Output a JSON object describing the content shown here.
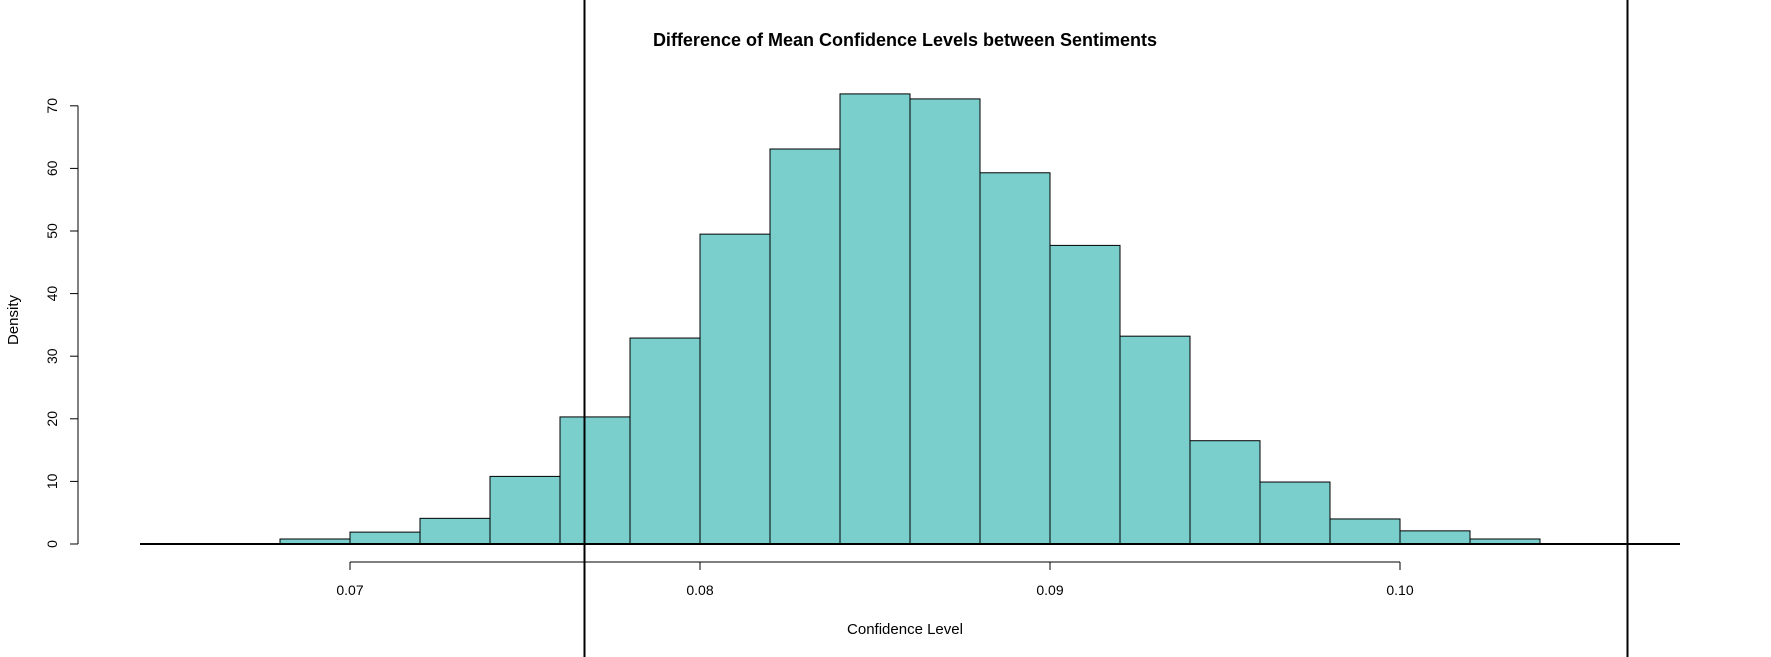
{
  "chart_data": {
    "type": "bar",
    "title": "Difference of Mean Confidence Levels between Sentiments",
    "xlabel": "Confidence Level",
    "ylabel": "Density",
    "bin_width": 0.002,
    "bins": [
      {
        "start": 0.068,
        "density": 0.8
      },
      {
        "start": 0.07,
        "density": 1.9
      },
      {
        "start": 0.072,
        "density": 4.1
      },
      {
        "start": 0.074,
        "density": 10.8
      },
      {
        "start": 0.076,
        "density": 20.3
      },
      {
        "start": 0.078,
        "density": 32.9
      },
      {
        "start": 0.08,
        "density": 49.5
      },
      {
        "start": 0.082,
        "density": 63.1
      },
      {
        "start": 0.084,
        "density": 71.9
      },
      {
        "start": 0.086,
        "density": 71.1
      },
      {
        "start": 0.088,
        "density": 59.3
      },
      {
        "start": 0.09,
        "density": 47.7
      },
      {
        "start": 0.092,
        "density": 33.2
      },
      {
        "start": 0.094,
        "density": 16.5
      },
      {
        "start": 0.096,
        "density": 9.9
      },
      {
        "start": 0.098,
        "density": 4.0
      },
      {
        "start": 0.1,
        "density": 2.1
      },
      {
        "start": 0.102,
        "density": 0.8
      }
    ],
    "x_ticks": [
      0.07,
      0.08,
      0.09,
      0.1
    ],
    "x_tick_labels": [
      "0.07",
      "0.08",
      "0.09",
      "0.10"
    ],
    "y_ticks": [
      0,
      10,
      20,
      30,
      40,
      50,
      60,
      70
    ],
    "y_tick_labels": [
      "0",
      "10",
      "20",
      "30",
      "40",
      "50",
      "60",
      "70"
    ],
    "xlim": [
      0.064,
      0.108
    ],
    "ylim": [
      0,
      72
    ],
    "vertical_lines": [
      0.0767,
      0.1065
    ],
    "baseline_extent": [
      0.064,
      0.108
    ],
    "grid": false,
    "colors": {
      "bar_fill": "#7ACECC",
      "bar_stroke": "#000000"
    }
  }
}
